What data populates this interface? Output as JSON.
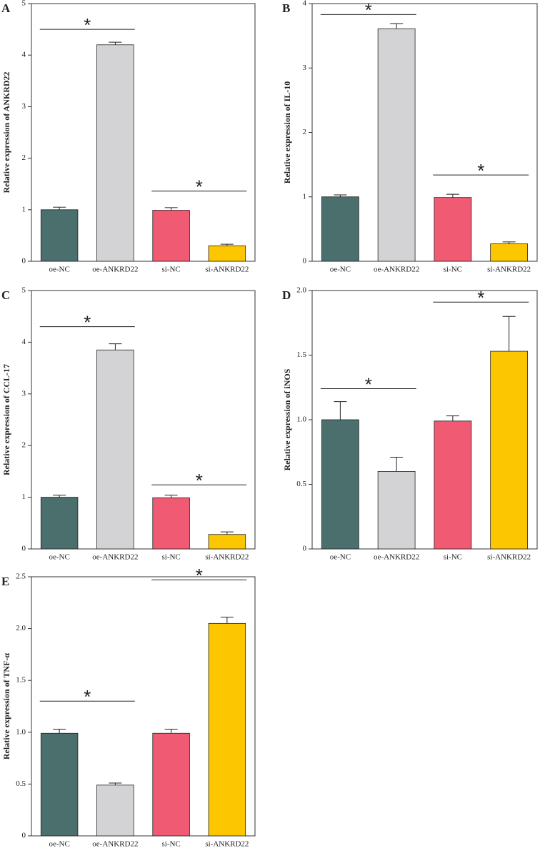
{
  "chart_data": [
    {
      "type": "bar",
      "panel": "A",
      "ylabel": "Relative expression of ANKRD22",
      "categories": [
        "oe-NC",
        "oe-ANKRD22",
        "si-NC",
        "si-ANKRD22"
      ],
      "values": [
        1.0,
        4.2,
        0.99,
        0.3
      ],
      "errors": [
        0.05,
        0.05,
        0.05,
        0.03
      ],
      "colors": [
        "#4a6f6c",
        "#d3d3d5",
        "#f05a73",
        "#fcc600"
      ],
      "ylim": [
        0,
        5
      ],
      "yticks": [
        0,
        1,
        2,
        3,
        4,
        5
      ],
      "annotations": [
        {
          "from": 0,
          "to": 1,
          "y": 4.5,
          "label": "*"
        },
        {
          "from": 2,
          "to": 3,
          "y": 1.36,
          "label": "*"
        }
      ]
    },
    {
      "type": "bar",
      "panel": "B",
      "ylabel": "Relative expression of IL-10",
      "categories": [
        "oe-NC",
        "oe-ANKRD22",
        "si-NC",
        "si-ANKRD22"
      ],
      "values": [
        1.0,
        3.61,
        0.99,
        0.27
      ],
      "errors": [
        0.03,
        0.08,
        0.05,
        0.03
      ],
      "colors": [
        "#4a6f6c",
        "#d3d3d5",
        "#f05a73",
        "#fcc600"
      ],
      "ylim": [
        0,
        4
      ],
      "yticks": [
        0,
        1,
        2,
        3,
        4
      ],
      "annotations": [
        {
          "from": 0,
          "to": 1,
          "y": 3.83,
          "label": "*"
        },
        {
          "from": 2,
          "to": 3,
          "y": 1.34,
          "label": "*"
        }
      ]
    },
    {
      "type": "bar",
      "panel": "C",
      "ylabel": "Relative expression of CCL-17",
      "categories": [
        "oe-NC",
        "oe-ANKRD22",
        "si-NC",
        "si-ANKRD22"
      ],
      "values": [
        1.0,
        3.85,
        0.99,
        0.28
      ],
      "errors": [
        0.04,
        0.12,
        0.05,
        0.05
      ],
      "colors": [
        "#4a6f6c",
        "#d3d3d5",
        "#f05a73",
        "#fcc600"
      ],
      "ylim": [
        0,
        5
      ],
      "yticks": [
        0,
        1,
        2,
        3,
        4,
        5
      ],
      "annotations": [
        {
          "from": 0,
          "to": 1,
          "y": 4.3,
          "label": "*"
        },
        {
          "from": 2,
          "to": 3,
          "y": 1.24,
          "label": "*"
        }
      ]
    },
    {
      "type": "bar",
      "panel": "D",
      "ylabel": "Relative expression of iNOS",
      "categories": [
        "oe-NC",
        "oe-ANKRD22",
        "si-NC",
        "si-ANKRD22"
      ],
      "values": [
        1.0,
        0.6,
        0.99,
        1.53
      ],
      "errors": [
        0.14,
        0.11,
        0.04,
        0.27
      ],
      "colors": [
        "#4a6f6c",
        "#d3d3d5",
        "#f05a73",
        "#fcc600"
      ],
      "ylim": [
        0,
        2
      ],
      "yticks": [
        0,
        0.5,
        {
          "value": 1,
          "label": "1.0"
        },
        1.5,
        {
          "value": 2,
          "label": "2.0"
        }
      ],
      "annotations": [
        {
          "from": 0,
          "to": 1,
          "y": 1.24,
          "label": "*"
        },
        {
          "from": 2,
          "to": 3,
          "y": 1.91,
          "label": "*"
        }
      ]
    },
    {
      "type": "bar",
      "panel": "E",
      "ylabel": "Relative expression of TNF-α",
      "categories": [
        "oe-NC",
        "oe-ANKRD22",
        "si-NC",
        "si-ANKRD22"
      ],
      "values": [
        0.99,
        0.49,
        0.99,
        2.05
      ],
      "errors": [
        0.04,
        0.02,
        0.04,
        0.06
      ],
      "colors": [
        "#4a6f6c",
        "#d3d3d5",
        "#f05a73",
        "#fcc600"
      ],
      "ylim": [
        0,
        2.5
      ],
      "yticks": [
        0,
        0.5,
        {
          "value": 1,
          "label": "1.0"
        },
        1.5,
        {
          "value": 2,
          "label": "2.0"
        },
        2.5
      ],
      "annotations": [
        {
          "from": 0,
          "to": 1,
          "y": 1.3,
          "label": "*"
        },
        {
          "from": 2,
          "to": 3,
          "y": 2.47,
          "label": "*"
        }
      ]
    }
  ]
}
